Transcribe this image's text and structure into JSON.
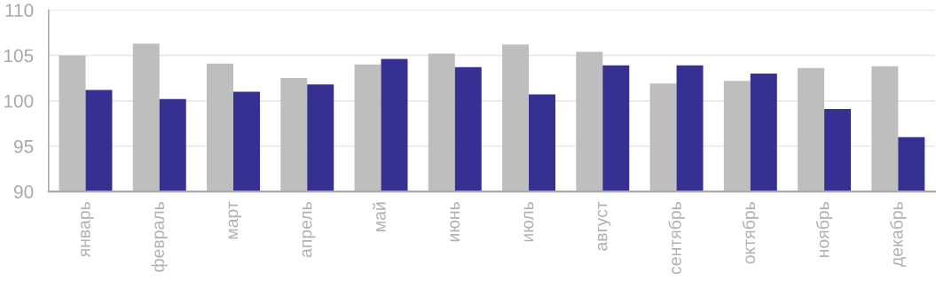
{
  "chart_data": {
    "type": "bar",
    "categories": [
      "январь",
      "февраль",
      "март",
      "апрель",
      "май",
      "июнь",
      "июль",
      "август",
      "сентябрь",
      "октябрь",
      "ноябрь",
      "декабрь"
    ],
    "series": [
      {
        "color": "#bebebe",
        "values": [
          105.0,
          106.3,
          104.1,
          102.5,
          104.0,
          105.2,
          106.2,
          105.4,
          101.9,
          102.2,
          103.6,
          103.8
        ]
      },
      {
        "color": "#363093",
        "values": [
          101.2,
          100.2,
          101.0,
          101.8,
          104.6,
          103.7,
          100.7,
          103.9,
          103.9,
          103.0,
          99.1,
          96.0
        ]
      }
    ],
    "ylim": [
      90,
      110
    ],
    "yticks": [
      90,
      95,
      100,
      105,
      110
    ],
    "grid": "y"
  }
}
